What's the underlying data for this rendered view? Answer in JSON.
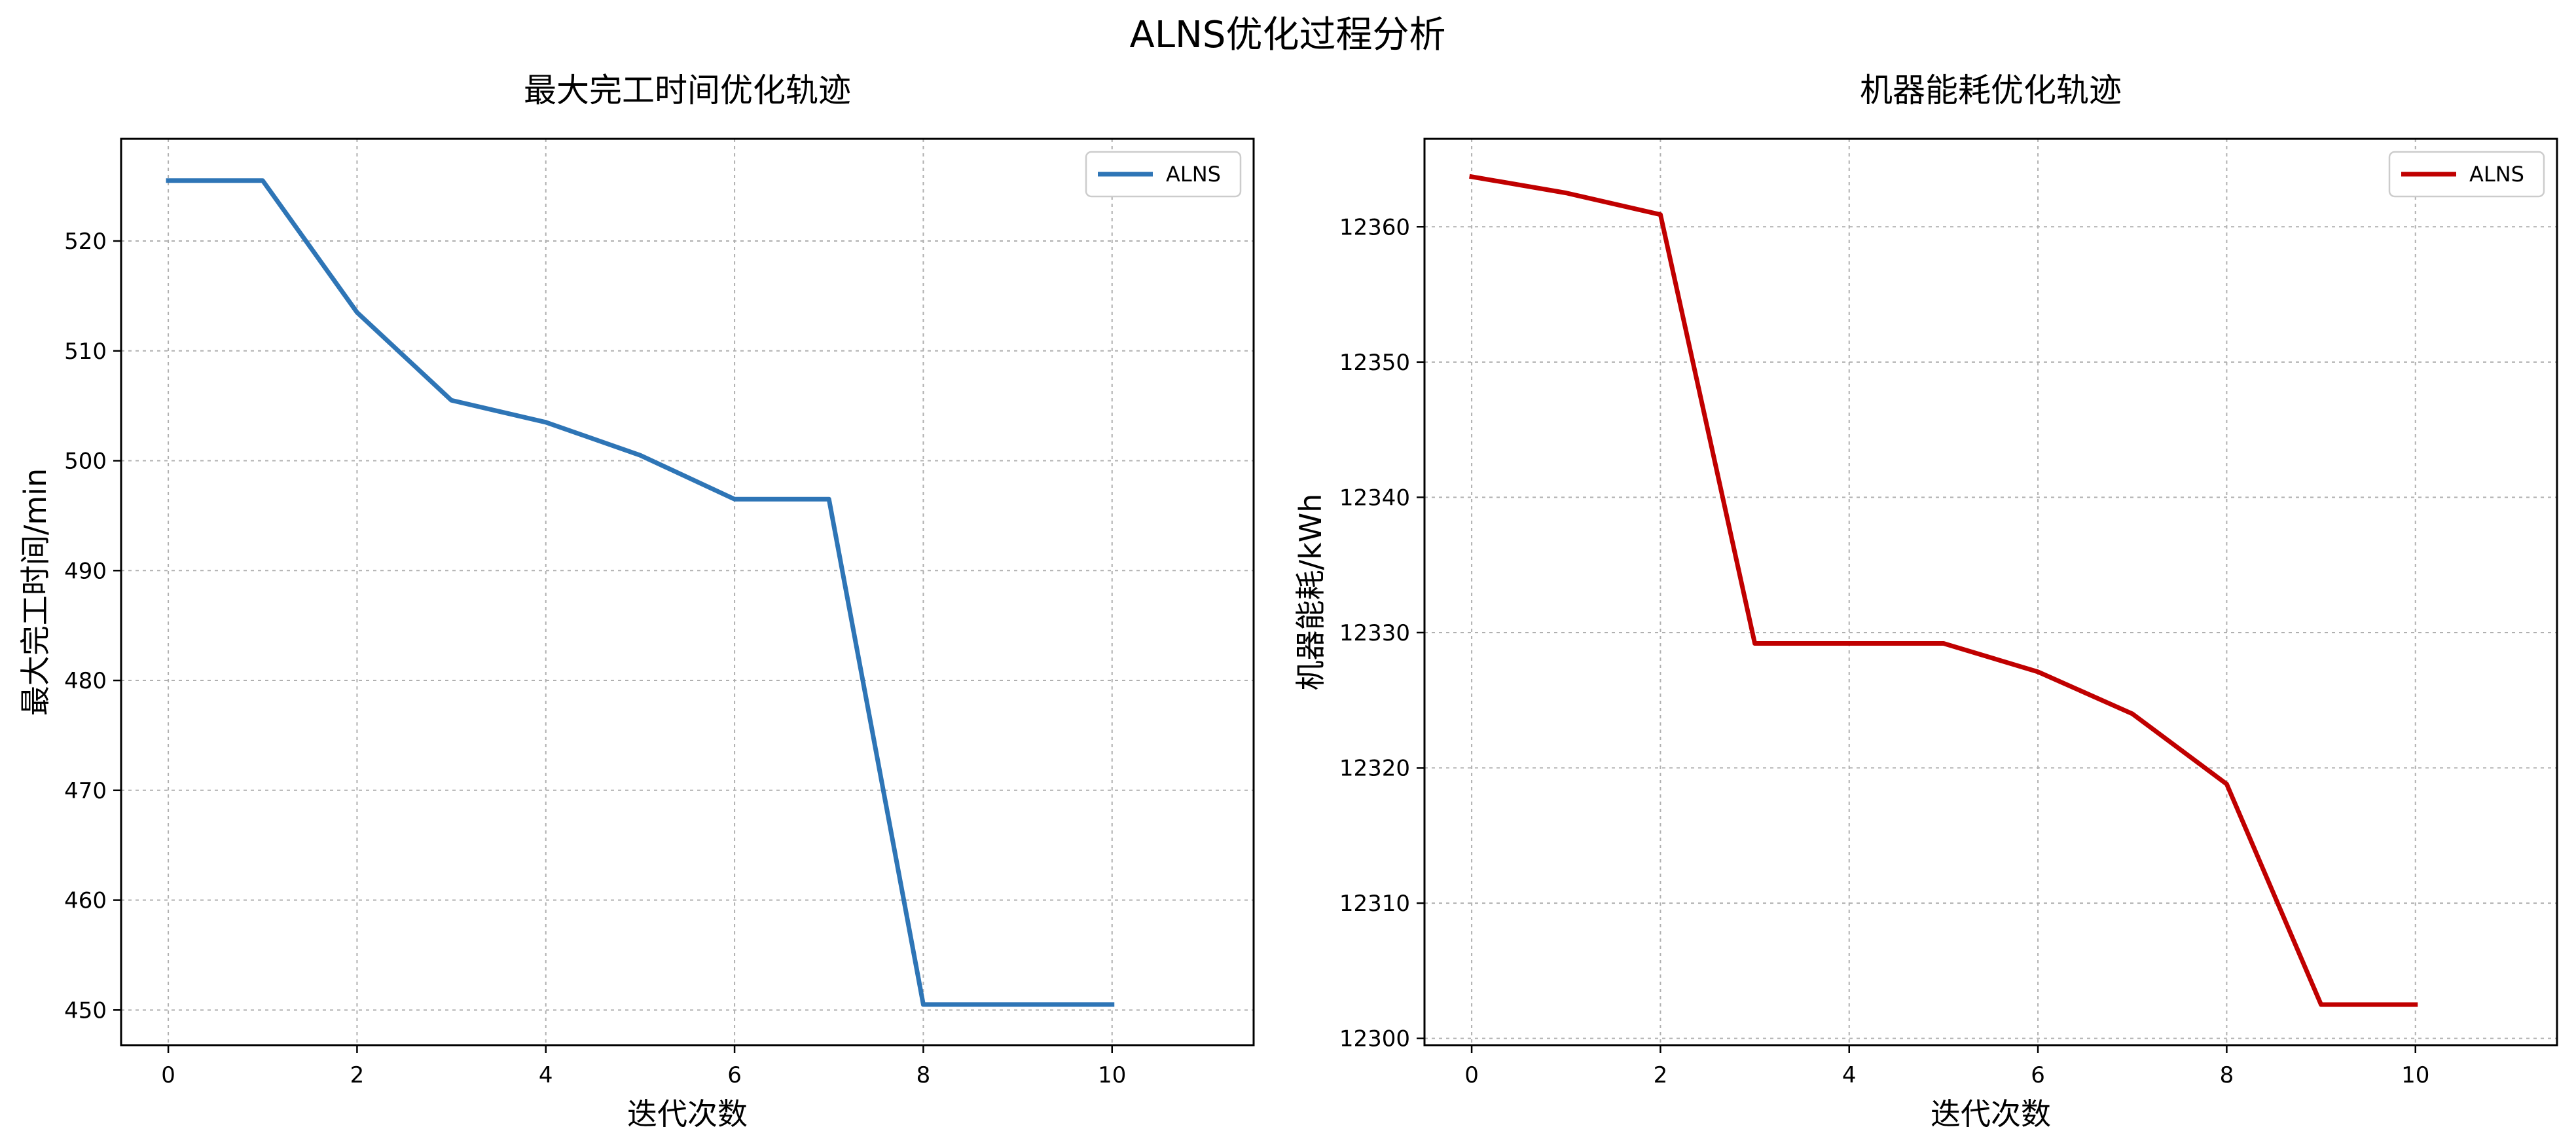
{
  "suptitle": "ALNS优化过程分析",
  "chart_data": [
    {
      "type": "line",
      "title": "最大完工时间优化轨迹",
      "xlabel": "迭代次数",
      "ylabel": "最大完工时间/min",
      "xlim": [
        -0.5,
        11.5
      ],
      "ylim": [
        446.8,
        529.3
      ],
      "xticks": [
        0,
        2,
        4,
        6,
        8,
        10
      ],
      "yticks": [
        450,
        460,
        470,
        480,
        490,
        500,
        510,
        520
      ],
      "grid": true,
      "legend_position": "top-right",
      "series": [
        {
          "name": "ALNS",
          "color": "#2e75b6",
          "x": [
            0,
            1,
            2,
            3,
            4,
            5,
            6,
            7,
            8,
            9,
            10
          ],
          "values": [
            525.5,
            525.5,
            513.5,
            505.5,
            503.5,
            500.5,
            496.5,
            496.5,
            450.5,
            450.5,
            450.5
          ]
        }
      ]
    },
    {
      "type": "line",
      "title": "机器能耗优化轨迹",
      "xlabel": "迭代次数",
      "ylabel": "机器能耗/kWh",
      "xlim": [
        -0.5,
        11.5
      ],
      "ylim": [
        12299.5,
        12366.5
      ],
      "xticks": [
        0,
        2,
        4,
        6,
        8,
        10
      ],
      "yticks": [
        12300,
        12310,
        12320,
        12330,
        12340,
        12350,
        12360
      ],
      "grid": true,
      "legend_position": "top-right",
      "series": [
        {
          "name": "ALNS",
          "color": "#c00000",
          "x": [
            0,
            1,
            2,
            3,
            4,
            5,
            6,
            7,
            8,
            9,
            10
          ],
          "values": [
            12363.7,
            12362.5,
            12360.9,
            12329.2,
            12329.2,
            12329.2,
            12327.1,
            12324.0,
            12318.8,
            12302.5,
            12302.5
          ]
        }
      ]
    }
  ]
}
